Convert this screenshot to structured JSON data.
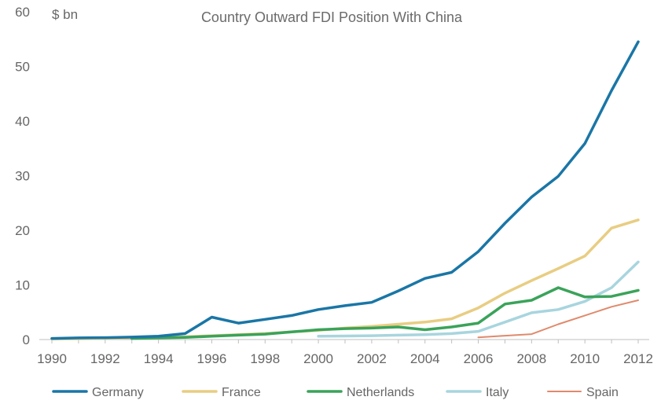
{
  "chart_data": {
    "type": "line",
    "title": "Country Outward FDI Position With China",
    "ylabel": "$ bn",
    "xlabel": "",
    "xlim": [
      1990,
      2012
    ],
    "ylim": [
      0,
      60
    ],
    "x_ticks": [
      "1990",
      "1992",
      "1994",
      "1996",
      "1998",
      "2000",
      "2002",
      "2004",
      "2006",
      "2008",
      "2010",
      "2012"
    ],
    "y_ticks": [
      "0",
      "10",
      "20",
      "30",
      "40",
      "50",
      "60"
    ],
    "grid": false,
    "legend_position": "bottom",
    "series": [
      {
        "name": "Germany",
        "color": "#1a76a6",
        "x": [
          1990,
          1991,
          1992,
          1993,
          1994,
          1995,
          1996,
          1997,
          1998,
          1999,
          2000,
          2001,
          2002,
          2003,
          2004,
          2005,
          2006,
          2007,
          2008,
          2009,
          2010,
          2011,
          2012
        ],
        "y": [
          0.2,
          0.3,
          0.35,
          0.45,
          0.6,
          1.1,
          4.1,
          3.0,
          3.7,
          4.4,
          5.5,
          6.2,
          6.8,
          8.9,
          11.2,
          12.3,
          16.1,
          21.3,
          26.1,
          29.9,
          35.9,
          45.6,
          54.5
        ]
      },
      {
        "name": "France",
        "color": "#e8cd82",
        "x": [
          1990,
          1991,
          1992,
          1993,
          1994,
          1995,
          1996,
          1997,
          1998,
          1999,
          2000,
          2001,
          2002,
          2003,
          2004,
          2005,
          2006,
          2007,
          2008,
          2009,
          2010,
          2011,
          2012
        ],
        "y": [
          0.1,
          0.15,
          0.2,
          0.3,
          0.4,
          0.5,
          0.7,
          0.9,
          1.1,
          1.4,
          1.7,
          2.1,
          2.4,
          2.8,
          3.2,
          3.8,
          5.8,
          8.5,
          10.8,
          13.0,
          15.3,
          20.4,
          21.9
        ]
      },
      {
        "name": "Netherlands",
        "color": "#3aa35a",
        "x": [
          1993,
          1994,
          1995,
          1996,
          1997,
          1998,
          1999,
          2000,
          2001,
          2002,
          2003,
          2004,
          2005,
          2006,
          2007,
          2008,
          2009,
          2010,
          2011,
          2012
        ],
        "y": [
          0.2,
          0.3,
          0.4,
          0.6,
          0.8,
          1.0,
          1.4,
          1.8,
          2.0,
          2.1,
          2.3,
          1.8,
          2.3,
          3.0,
          6.5,
          7.2,
          9.5,
          7.8,
          7.9,
          9.0
        ]
      },
      {
        "name": "Italy",
        "color": "#a8d5de",
        "x": [
          2000,
          2001,
          2002,
          2003,
          2004,
          2005,
          2006,
          2007,
          2008,
          2009,
          2010,
          2011,
          2012
        ],
        "y": [
          0.6,
          0.65,
          0.7,
          0.8,
          0.9,
          1.1,
          1.5,
          3.2,
          4.9,
          5.5,
          7.0,
          9.5,
          14.2
        ]
      },
      {
        "name": "Spain",
        "color": "#e08a6c",
        "x": [
          2006,
          2007,
          2008,
          2009,
          2010,
          2011,
          2012
        ],
        "y": [
          0.4,
          0.7,
          1.0,
          2.8,
          4.4,
          6.0,
          7.2
        ]
      }
    ]
  }
}
